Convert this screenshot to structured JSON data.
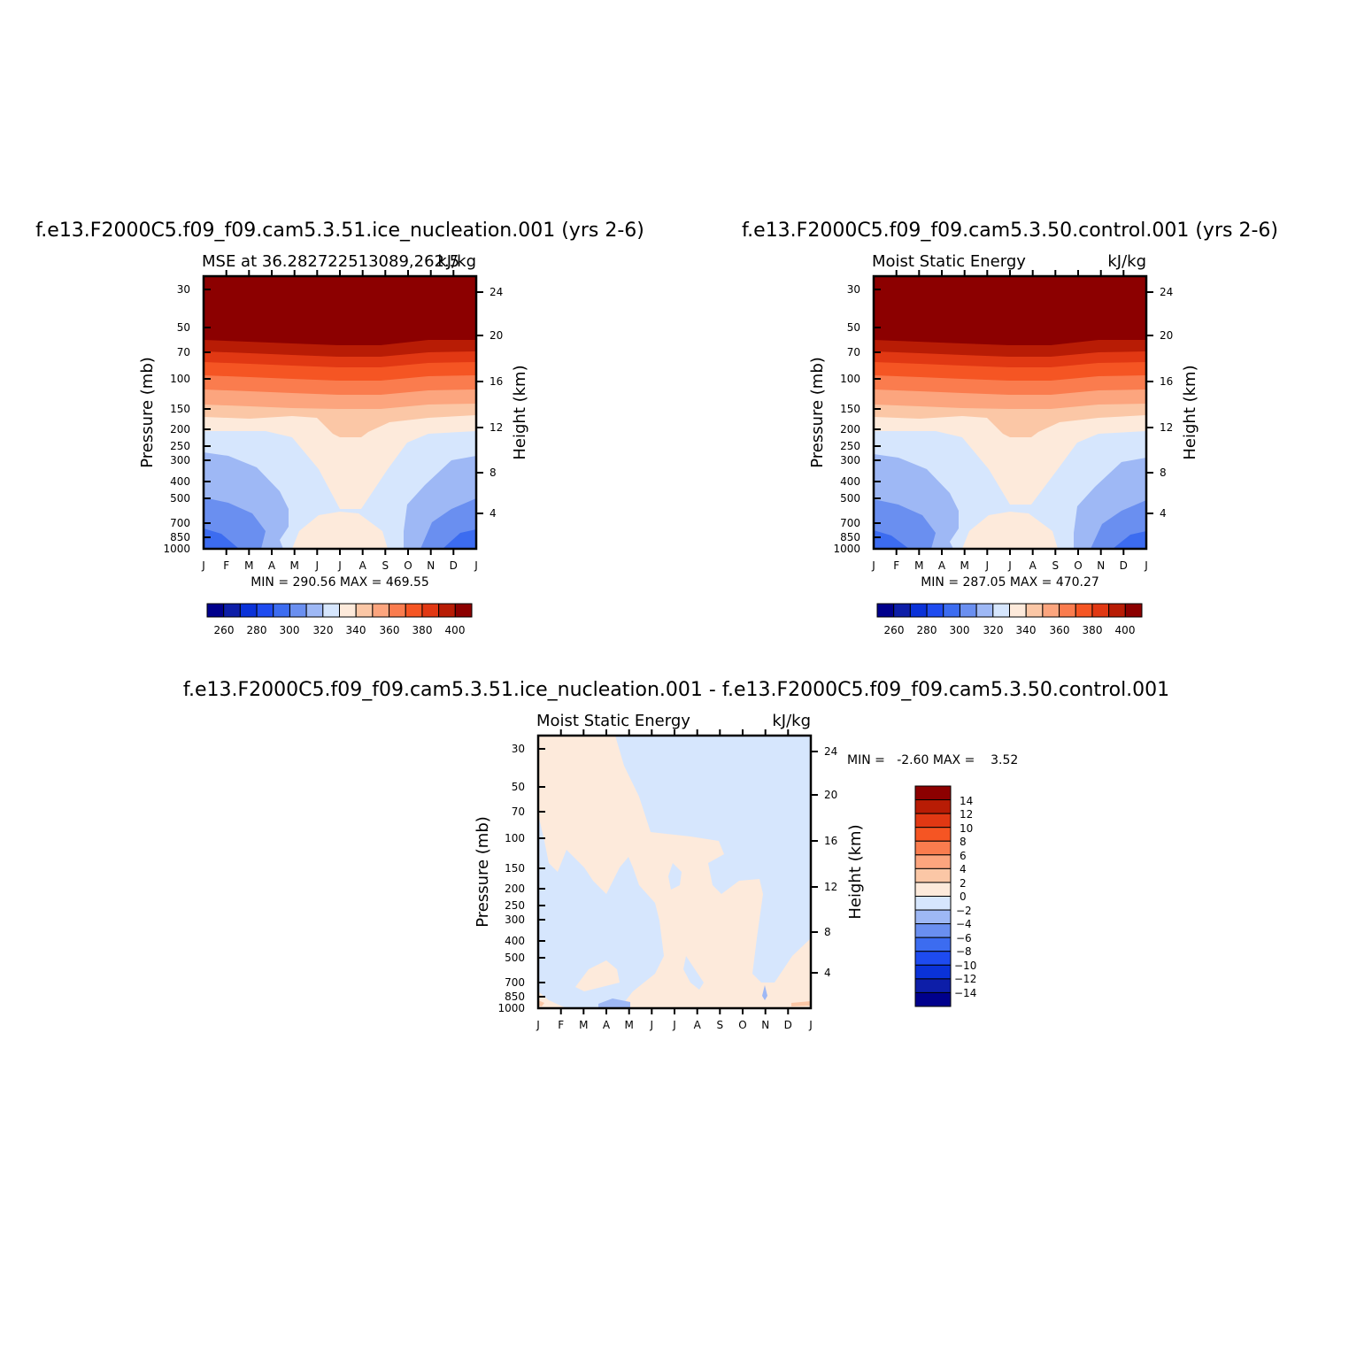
{
  "chart_data": [
    {
      "type": "heatmap",
      "case_title": "f.e13.F2000C5.f09_f09.cam5.3.51.ice_nucleation.001 (yrs 2-6)",
      "left_label": "MSE at 36.282722513089,262.5",
      "right_label": "kJ/kg",
      "ylabel": "Pressure (mb)",
      "y2label": "Height (km)",
      "months": [
        "J",
        "F",
        "M",
        "A",
        "M",
        "J",
        "J",
        "A",
        "S",
        "O",
        "N",
        "D",
        "J"
      ],
      "pressure_ticks": [
        "30",
        "50",
        "70",
        "100",
        "150",
        "200",
        "250",
        "300",
        "400",
        "500",
        "700",
        "850",
        "1000"
      ],
      "height_ticks": [
        "24",
        "20",
        "16",
        "12",
        "8",
        "4"
      ],
      "min": 290.56,
      "max": 469.55,
      "stats_text": "MIN = 290.56 MAX = 469.55",
      "contour_levels": [
        250,
        260,
        270,
        280,
        290,
        300,
        310,
        320,
        330,
        340,
        350,
        360,
        370,
        380,
        390,
        400
      ],
      "colorbar_labels": [
        "260",
        "280",
        "300",
        "320",
        "340",
        "360",
        "380",
        "400"
      ]
    },
    {
      "type": "heatmap",
      "case_title": "f.e13.F2000C5.f09_f09.cam5.3.50.control.001 (yrs 2-6)",
      "left_label": "Moist Static Energy",
      "right_label": "kJ/kg",
      "ylabel": "Pressure (mb)",
      "y2label": "Height (km)",
      "months": [
        "J",
        "F",
        "M",
        "A",
        "M",
        "J",
        "J",
        "A",
        "S",
        "O",
        "N",
        "D",
        "J"
      ],
      "pressure_ticks": [
        "30",
        "50",
        "70",
        "100",
        "150",
        "200",
        "250",
        "300",
        "400",
        "500",
        "700",
        "850",
        "1000"
      ],
      "height_ticks": [
        "24",
        "20",
        "16",
        "12",
        "8",
        "4"
      ],
      "min": 287.05,
      "max": 470.27,
      "stats_text": "MIN = 287.05 MAX = 470.27",
      "contour_levels": [
        250,
        260,
        270,
        280,
        290,
        300,
        310,
        320,
        330,
        340,
        350,
        360,
        370,
        380,
        390,
        400
      ],
      "colorbar_labels": [
        "260",
        "280",
        "300",
        "320",
        "340",
        "360",
        "380",
        "400"
      ]
    },
    {
      "type": "heatmap",
      "case_title": "f.e13.F2000C5.f09_f09.cam5.3.51.ice_nucleation.001 - f.e13.F2000C5.f09_f09.cam5.3.50.control.001",
      "left_label": "Moist Static Energy",
      "right_label": "kJ/kg",
      "ylabel": "Pressure (mb)",
      "y2label": "Height (km)",
      "months": [
        "J",
        "F",
        "M",
        "A",
        "M",
        "J",
        "J",
        "A",
        "S",
        "O",
        "N",
        "D",
        "J"
      ],
      "pressure_ticks": [
        "30",
        "50",
        "70",
        "100",
        "150",
        "200",
        "250",
        "300",
        "400",
        "500",
        "700",
        "850",
        "1000"
      ],
      "height_ticks": [
        "24",
        "20",
        "16",
        "12",
        "8",
        "4"
      ],
      "min": -2.6,
      "max": 3.52,
      "stats_text": "MIN =   -2.60 MAX =    3.52",
      "contour_levels": [
        -14,
        -12,
        -10,
        -8,
        -6,
        -4,
        -2,
        0,
        2,
        4,
        6,
        8,
        10,
        12,
        14
      ],
      "colorbar_labels": [
        "14",
        "12",
        "10",
        "8",
        "6",
        "4",
        "2",
        "0",
        "−2",
        "−4",
        "−6",
        "−8",
        "−10",
        "−12",
        "−14"
      ]
    }
  ],
  "palette": {
    "ramp": [
      "#00008c",
      "#0d1ea8",
      "#0a32d8",
      "#1e4bf0",
      "#3c6cf0",
      "#6a8ff0",
      "#9eb8f5",
      "#d6e6fd",
      "#fdeadb",
      "#fbc7a6",
      "#fca57e",
      "#fa7c4e",
      "#f55523",
      "#e13813",
      "#b81c05",
      "#8c0000"
    ],
    "diff_neg": [
      "#00008c",
      "#0d1ea8",
      "#0a32d8",
      "#1e4bf0",
      "#3c6cf0",
      "#6a8ff0",
      "#9eb8f5",
      "#d6e6fd"
    ],
    "diff_pos": [
      "#fdeadb",
      "#fbc7a6",
      "#fca57e",
      "#fa7c4e",
      "#f55523",
      "#e13813",
      "#b81c05",
      "#8c0000"
    ]
  }
}
